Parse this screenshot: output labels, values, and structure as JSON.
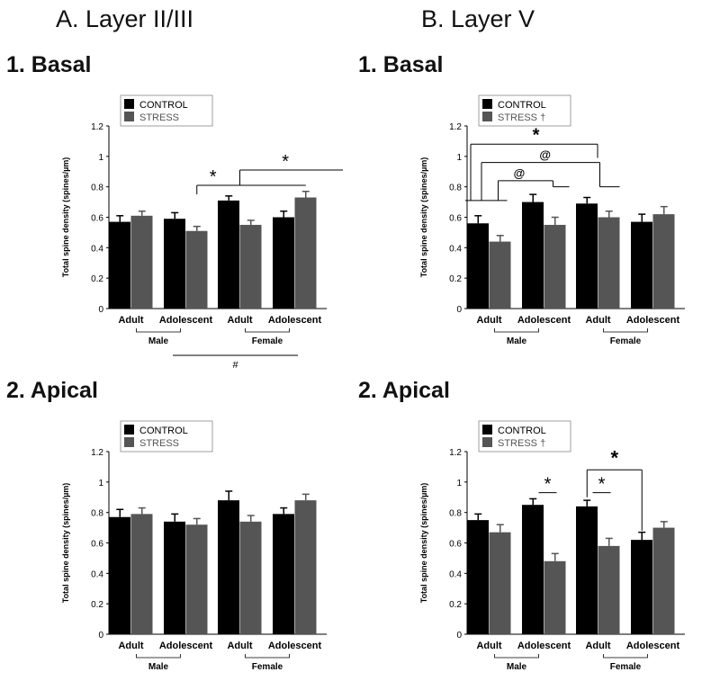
{
  "columns": [
    "A. Layer II/III",
    "B. Layer V"
  ],
  "panel_titles": [
    "1. Basal",
    "1. Basal",
    "2. Apical",
    "2. Apical"
  ],
  "colors": {
    "control": "#000000",
    "stress": "#555555",
    "error": "#444444",
    "line": "#000000"
  },
  "chart_data": [
    {
      "type": "bar",
      "ylabel": "Total spine density (spines/µm)",
      "ylim": [
        0,
        1.2
      ],
      "yticks": [
        "0",
        "0.2",
        "0.4",
        "0.6",
        "0.8",
        "1",
        "1.2"
      ],
      "categories": [
        "Adult",
        "Adolescent",
        "Adult",
        "Adolescent"
      ],
      "groups": [
        "Male",
        "Female"
      ],
      "legend": [
        "CONTROL",
        "STRESS"
      ],
      "series": [
        {
          "name": "CONTROL",
          "values": [
            0.57,
            0.59,
            0.71,
            0.6
          ],
          "errors": [
            0.04,
            0.04,
            0.03,
            0.04
          ]
        },
        {
          "name": "STRESS",
          "values": [
            0.61,
            0.51,
            0.55,
            0.73
          ],
          "errors": [
            0.03,
            0.03,
            0.03,
            0.04
          ]
        }
      ],
      "annotations": [
        "*",
        "*"
      ],
      "footnote": "#"
    },
    {
      "type": "bar",
      "ylabel": "Total spine density (spines/µm)",
      "ylim": [
        0,
        1.2
      ],
      "yticks": [
        "0",
        "0.2",
        "0.4",
        "0.6",
        "0.8",
        "1",
        "1.2"
      ],
      "categories": [
        "Adult",
        "Adolescent",
        "Adult",
        "Adolescent"
      ],
      "groups": [
        "Male",
        "Female"
      ],
      "legend": [
        "CONTROL",
        "STRESS †"
      ],
      "series": [
        {
          "name": "CONTROL",
          "values": [
            0.56,
            0.7,
            0.69,
            0.57
          ],
          "errors": [
            0.05,
            0.05,
            0.04,
            0.05
          ]
        },
        {
          "name": "STRESS †",
          "values": [
            0.44,
            0.55,
            0.6,
            0.62
          ],
          "errors": [
            0.04,
            0.05,
            0.04,
            0.05
          ]
        }
      ],
      "annotations": [
        "*",
        "@",
        "@"
      ]
    },
    {
      "type": "bar",
      "ylabel": "Total spine density (spines/µm)",
      "ylim": [
        0,
        1.2
      ],
      "yticks": [
        "0",
        "0.2",
        "0.4",
        "0.6",
        "0.8",
        "1",
        "1.2"
      ],
      "categories": [
        "Adult",
        "Adolescent",
        "Adult",
        "Adolescent"
      ],
      "groups": [
        "Male",
        "Female"
      ],
      "legend": [
        "CONTROL",
        "STRESS"
      ],
      "series": [
        {
          "name": "CONTROL",
          "values": [
            0.77,
            0.74,
            0.88,
            0.79
          ],
          "errors": [
            0.05,
            0.05,
            0.06,
            0.04
          ]
        },
        {
          "name": "STRESS",
          "values": [
            0.79,
            0.72,
            0.74,
            0.88
          ],
          "errors": [
            0.04,
            0.04,
            0.04,
            0.04
          ]
        }
      ]
    },
    {
      "type": "bar",
      "ylabel": "Total spine density (spines/µm)",
      "ylim": [
        0,
        1.2
      ],
      "yticks": [
        "0",
        "0.2",
        "0.4",
        "0.6",
        "0.8",
        "1",
        "1.2"
      ],
      "categories": [
        "Adult",
        "Adolescent",
        "Adult",
        "Adolescent"
      ],
      "groups": [
        "Male",
        "Female"
      ],
      "legend": [
        "CONTROL",
        "STRESS †"
      ],
      "series": [
        {
          "name": "CONTROL",
          "values": [
            0.75,
            0.85,
            0.84,
            0.62
          ],
          "errors": [
            0.04,
            0.04,
            0.04,
            0.05
          ]
        },
        {
          "name": "STRESS †",
          "values": [
            0.67,
            0.48,
            0.58,
            0.7
          ],
          "errors": [
            0.05,
            0.05,
            0.05,
            0.04
          ]
        }
      ],
      "annotations": [
        "*",
        "*",
        "*"
      ]
    }
  ]
}
